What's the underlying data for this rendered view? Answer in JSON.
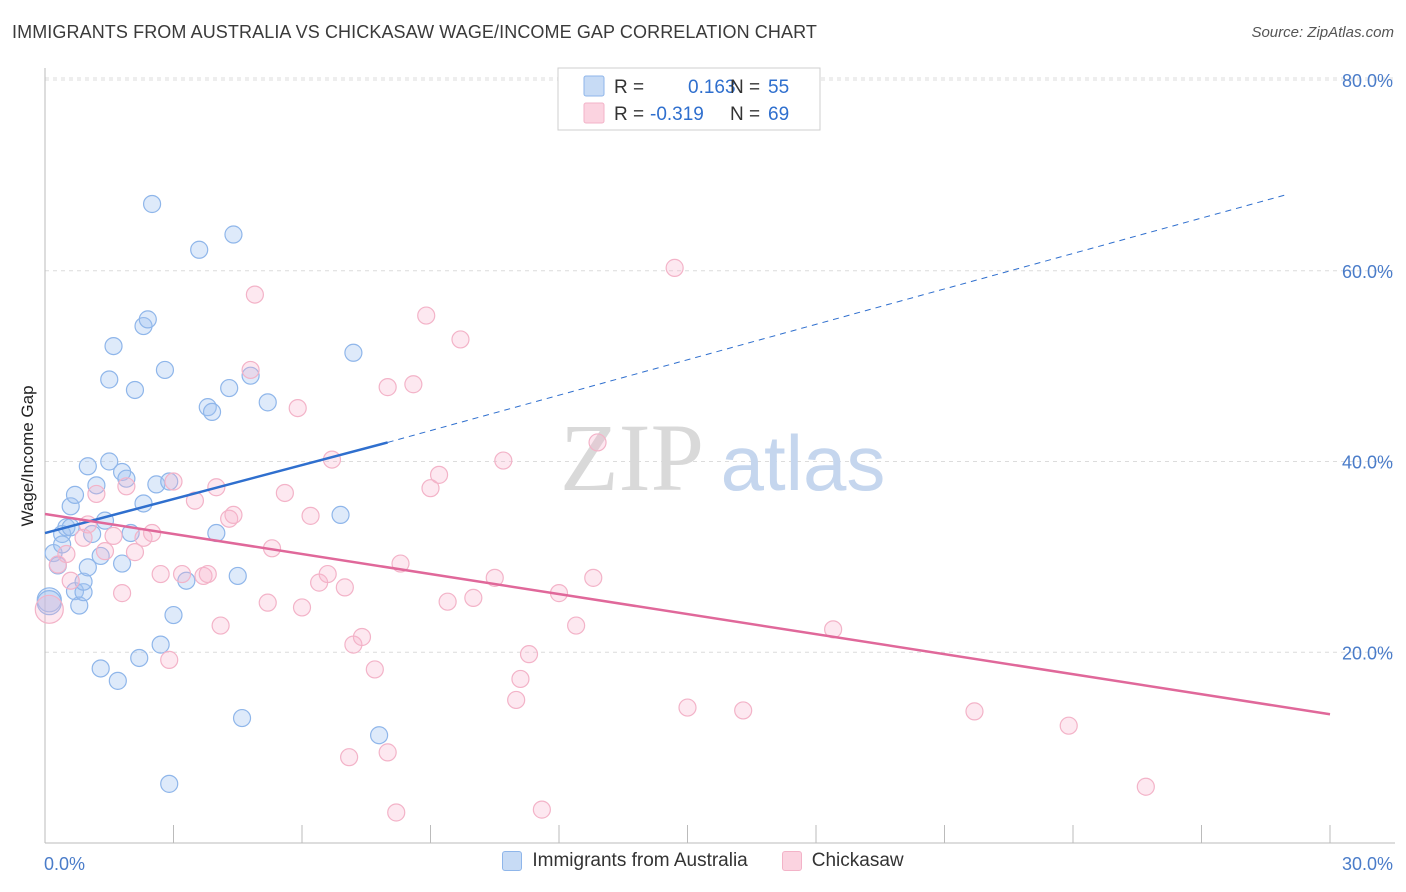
{
  "header": {
    "title": "IMMIGRANTS FROM AUSTRALIA VS CHICKASAW WAGE/INCOME GAP CORRELATION CHART",
    "source": "Source: ZipAtlas.com"
  },
  "watermark": {
    "zip": "ZIP",
    "atlas": "atlas"
  },
  "chart_data": {
    "type": "scatter",
    "title": "IMMIGRANTS FROM AUSTRALIA VS CHICKASAW WAGE/INCOME GAP CORRELATION CHART",
    "xlabel": "",
    "ylabel": "Wage/Income Gap",
    "xlim": [
      0,
      30
    ],
    "ylim": [
      0,
      80
    ],
    "x_tick_labels": [
      "0.0%",
      "30.0%"
    ],
    "y_ticks": [
      20,
      40,
      60,
      80
    ],
    "y_tick_labels": [
      "20.0%",
      "40.0%",
      "60.0%",
      "80.0%"
    ],
    "grid": true,
    "legend_position": "top-center",
    "series": [
      {
        "name": "Immigrants from Australia",
        "color": "#8fb6ea",
        "line_color": "#2f6fce",
        "R": "0.163",
        "N": "55",
        "trend": {
          "x0": 0,
          "y0": 32.5,
          "x1": 8,
          "y1": 42,
          "x_dash_end": 29,
          "y_dash_end": 68
        },
        "points": [
          [
            0.1,
            25.5
          ],
          [
            0.1,
            25.2
          ],
          [
            0.2,
            30.4
          ],
          [
            0.3,
            29.1
          ],
          [
            0.4,
            32.4
          ],
          [
            0.4,
            31.3
          ],
          [
            0.5,
            33.1
          ],
          [
            0.6,
            35.3
          ],
          [
            0.6,
            33.1
          ],
          [
            0.7,
            36.5
          ],
          [
            0.7,
            26.4
          ],
          [
            0.8,
            24.9
          ],
          [
            0.9,
            26.3
          ],
          [
            0.9,
            27.4
          ],
          [
            1.0,
            28.9
          ],
          [
            1.0,
            39.5
          ],
          [
            1.1,
            32.4
          ],
          [
            1.2,
            37.5
          ],
          [
            1.3,
            30.1
          ],
          [
            1.3,
            18.3
          ],
          [
            1.4,
            33.8
          ],
          [
            1.5,
            40.0
          ],
          [
            1.5,
            48.6
          ],
          [
            1.6,
            52.1
          ],
          [
            1.7,
            17.0
          ],
          [
            1.8,
            29.3
          ],
          [
            1.8,
            38.9
          ],
          [
            1.9,
            38.2
          ],
          [
            2.0,
            32.5
          ],
          [
            2.1,
            47.5
          ],
          [
            2.2,
            19.4
          ],
          [
            2.3,
            54.2
          ],
          [
            2.3,
            35.6
          ],
          [
            2.4,
            54.9
          ],
          [
            2.5,
            67.0
          ],
          [
            2.6,
            37.6
          ],
          [
            2.7,
            20.8
          ],
          [
            2.8,
            49.6
          ],
          [
            2.9,
            37.9
          ],
          [
            2.9,
            6.2
          ],
          [
            3.0,
            23.9
          ],
          [
            3.3,
            27.5
          ],
          [
            3.6,
            62.2
          ],
          [
            3.8,
            45.7
          ],
          [
            3.9,
            45.2
          ],
          [
            4.0,
            32.5
          ],
          [
            4.3,
            47.7
          ],
          [
            4.4,
            63.8
          ],
          [
            4.5,
            28.0
          ],
          [
            4.6,
            13.1
          ],
          [
            4.8,
            49.0
          ],
          [
            5.2,
            46.2
          ],
          [
            6.9,
            34.4
          ],
          [
            7.2,
            51.4
          ],
          [
            7.8,
            11.3
          ]
        ]
      },
      {
        "name": "Chickasaw",
        "color": "#f3b3c8",
        "line_color": "#e0689a",
        "R": "-0.319",
        "N": "69",
        "trend": {
          "x0": 0,
          "y0": 34.5,
          "x1": 30,
          "y1": 13.5
        },
        "points": [
          [
            0.1,
            24.5
          ],
          [
            0.3,
            29.2
          ],
          [
            0.5,
            30.3
          ],
          [
            0.6,
            27.5
          ],
          [
            0.9,
            32.0
          ],
          [
            1.0,
            33.4
          ],
          [
            1.2,
            36.6
          ],
          [
            1.4,
            30.6
          ],
          [
            1.6,
            32.2
          ],
          [
            1.8,
            26.2
          ],
          [
            1.9,
            37.4
          ],
          [
            2.1,
            30.5
          ],
          [
            2.3,
            32.0
          ],
          [
            2.5,
            32.5
          ],
          [
            2.7,
            28.2
          ],
          [
            2.9,
            19.2
          ],
          [
            3.0,
            37.9
          ],
          [
            3.2,
            28.2
          ],
          [
            3.5,
            35.9
          ],
          [
            3.7,
            28.0
          ],
          [
            3.8,
            28.2
          ],
          [
            4.0,
            37.3
          ],
          [
            4.1,
            22.8
          ],
          [
            4.3,
            34.0
          ],
          [
            4.4,
            34.4
          ],
          [
            4.8,
            49.6
          ],
          [
            4.9,
            57.5
          ],
          [
            5.2,
            25.2
          ],
          [
            5.3,
            30.9
          ],
          [
            5.6,
            36.7
          ],
          [
            5.9,
            45.6
          ],
          [
            6.0,
            24.7
          ],
          [
            6.2,
            34.3
          ],
          [
            6.4,
            27.3
          ],
          [
            6.6,
            28.2
          ],
          [
            6.7,
            40.2
          ],
          [
            7.0,
            26.8
          ],
          [
            7.1,
            9.0
          ],
          [
            7.2,
            20.8
          ],
          [
            7.4,
            21.6
          ],
          [
            7.7,
            18.2
          ],
          [
            8.0,
            9.5
          ],
          [
            8.0,
            47.8
          ],
          [
            8.2,
            3.2
          ],
          [
            8.3,
            29.3
          ],
          [
            8.6,
            48.1
          ],
          [
            8.9,
            55.3
          ],
          [
            9.0,
            37.2
          ],
          [
            9.2,
            38.6
          ],
          [
            9.4,
            25.3
          ],
          [
            9.7,
            52.8
          ],
          [
            10.0,
            25.7
          ],
          [
            10.5,
            27.8
          ],
          [
            10.7,
            40.1
          ],
          [
            11.0,
            15.0
          ],
          [
            11.1,
            17.2
          ],
          [
            11.3,
            19.8
          ],
          [
            11.6,
            3.5
          ],
          [
            12.0,
            26.2
          ],
          [
            12.4,
            22.8
          ],
          [
            12.8,
            27.8
          ],
          [
            12.9,
            42.0
          ],
          [
            14.7,
            60.3
          ],
          [
            15.0,
            14.2
          ],
          [
            16.3,
            13.9
          ],
          [
            18.4,
            22.4
          ],
          [
            21.7,
            13.8
          ],
          [
            23.9,
            12.3
          ],
          [
            25.7,
            5.9
          ]
        ]
      }
    ]
  }
}
